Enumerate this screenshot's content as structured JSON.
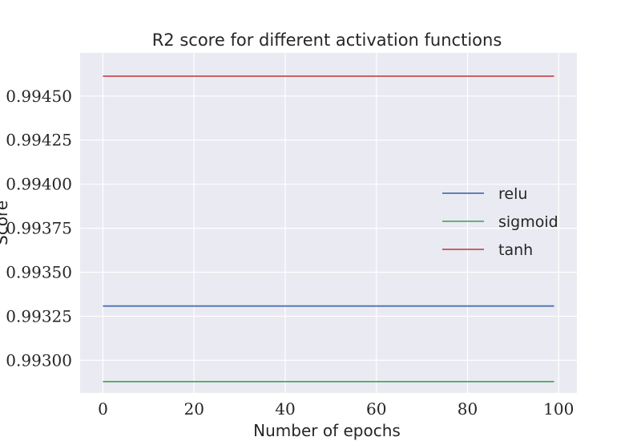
{
  "chart_data": {
    "type": "line",
    "title": "R2 score for different activation functions",
    "xlabel": "Number of epochs",
    "ylabel": "Score",
    "xlim": [
      -5,
      104
    ],
    "ylim": [
      0.992815,
      0.994745
    ],
    "x_ticks": [
      0,
      20,
      40,
      60,
      80,
      100
    ],
    "x_tick_labels": [
      "0",
      "20",
      "40",
      "60",
      "80",
      "100"
    ],
    "y_ticks": [
      0.993,
      0.99325,
      0.9935,
      0.99375,
      0.994,
      0.99425,
      0.9945
    ],
    "y_tick_labels": [
      "0.99300",
      "0.99325",
      "0.99350",
      "0.99375",
      "0.99400",
      "0.99425",
      "0.99450"
    ],
    "x_range": [
      0,
      99
    ],
    "grid": true,
    "legend_position": "center-right",
    "series": [
      {
        "name": "relu",
        "color": "#4c72b0",
        "values": [
          0.993308,
          0.993308
        ]
      },
      {
        "name": "sigmoid",
        "color": "#55a868",
        "values": [
          0.992879,
          0.992879
        ]
      },
      {
        "name": "tanh",
        "color": "#c44e52",
        "values": [
          0.994613,
          0.994613
        ]
      }
    ]
  }
}
